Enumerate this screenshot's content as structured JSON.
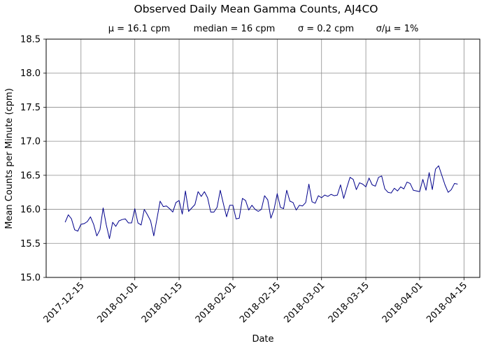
{
  "chart_data": {
    "type": "line",
    "title": "Observed Daily Mean Gamma Counts, AJ4CO",
    "stats": [
      "μ = 16.1 cpm",
      "median = 16 cpm",
      "σ = 0.2 cpm",
      "σ/μ = 1%"
    ],
    "xlabel": "Date",
    "ylabel": "Mean Counts per Minute (cpm)",
    "xlim": [
      "2017-12-04",
      "2018-04-20"
    ],
    "ylim": [
      15.0,
      18.5
    ],
    "yticks": [
      "15.0",
      "15.5",
      "16.0",
      "16.5",
      "17.0",
      "17.5",
      "18.0",
      "18.5"
    ],
    "xticks": [
      "2017-12-15",
      "2018-01-01",
      "2018-01-15",
      "2018-02-01",
      "2018-02-15",
      "2018-03-01",
      "2018-03-15",
      "2018-04-01",
      "2018-04-15"
    ],
    "grid": true,
    "line_color": "#00008b",
    "series": [
      {
        "start_date": "2017-12-10",
        "values": [
          15.81,
          15.92,
          15.86,
          15.7,
          15.68,
          15.78,
          15.79,
          15.82,
          15.89,
          15.78,
          15.61,
          15.7,
          16.02,
          15.77,
          15.57,
          15.81,
          15.75,
          15.83,
          15.85,
          15.86,
          15.8,
          15.8,
          16.01,
          15.8,
          15.77,
          16.0,
          15.92,
          15.83,
          15.61,
          15.86,
          16.12,
          16.04,
          16.05,
          16.01,
          15.96,
          16.1,
          16.13,
          15.93,
          16.27,
          15.97,
          16.02,
          16.07,
          16.26,
          16.19,
          16.26,
          16.17,
          15.96,
          15.96,
          16.03,
          16.28,
          16.08,
          15.89,
          16.06,
          16.06,
          15.86,
          15.87,
          16.16,
          16.13,
          15.99,
          16.06,
          16.0,
          15.97,
          16.0,
          16.2,
          16.14,
          15.87,
          16.0,
          16.23,
          16.03,
          16.01,
          16.28,
          16.12,
          16.1,
          15.99,
          16.06,
          16.05,
          16.1,
          16.37,
          16.11,
          16.09,
          16.2,
          16.17,
          16.21,
          16.19,
          16.22,
          16.2,
          16.21,
          16.36,
          16.16,
          16.32,
          16.47,
          16.44,
          16.29,
          16.39,
          16.37,
          16.33,
          16.46,
          16.36,
          16.34,
          16.47,
          16.49,
          16.3,
          16.25,
          16.24,
          16.31,
          16.27,
          16.33,
          16.3,
          16.4,
          16.38,
          16.28,
          16.27,
          16.26,
          16.44,
          16.28,
          16.54,
          16.29,
          16.59,
          16.64,
          16.5,
          16.36,
          16.25,
          16.29,
          16.38,
          16.37
        ]
      }
    ]
  }
}
